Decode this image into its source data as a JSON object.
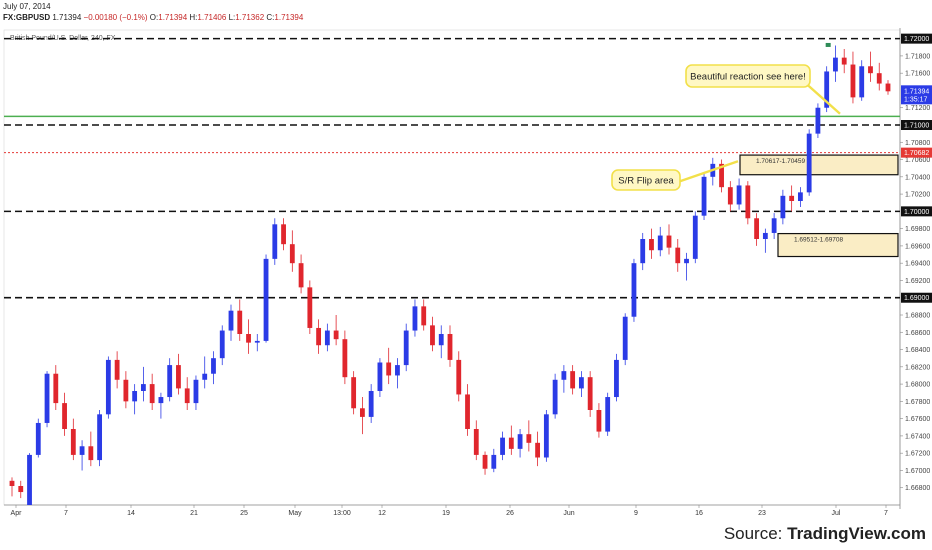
{
  "header": {
    "date": "July 07, 2014",
    "symbol": "FX:GBPUSD",
    "last": "1.71394",
    "change": "−0.00180 (−0.1%)",
    "open_label": "O:",
    "open": "1.71394",
    "high_label": "H:",
    "high": "1.71406",
    "low_label": "L:",
    "low": "1.71362",
    "close_label": "C:",
    "close": "1.71394",
    "instrument_title": "British Pound/U.S. Dollar, 240, FX"
  },
  "source": {
    "prefix": "Source: ",
    "brand": "TradingView.com"
  },
  "chart_data": {
    "type": "candlestick",
    "y_range": [
      1.666,
      1.721
    ],
    "x_tick_labels": [
      "Apr",
      "7",
      "14",
      "21",
      "25",
      "May",
      "13:00",
      "12",
      "19",
      "26",
      "Jun",
      "9",
      "16",
      "23",
      "Jul",
      "7"
    ],
    "y_tick_labels": [
      "1.71800",
      "1.71600",
      "1.71200",
      "1.70800",
      "1.70600",
      "1.70400",
      "1.70200",
      "1.69800",
      "1.69600",
      "1.69400",
      "1.69200",
      "1.68800",
      "1.68600",
      "1.68400",
      "1.68200",
      "1.68000",
      "1.67800",
      "1.67600",
      "1.67400",
      "1.67200",
      "1.67000",
      "1.66800"
    ],
    "level_labels": [
      {
        "value": 1.72,
        "label": "1.72000",
        "style": "dashed-black"
      },
      {
        "value": 1.71,
        "label": "1.71000",
        "style": "dashed-black"
      },
      {
        "value": 1.7,
        "label": "1.70000",
        "style": "dashed-black"
      },
      {
        "value": 1.69,
        "label": "1.69000",
        "style": "dashed-black"
      },
      {
        "value": 1.7068,
        "label": "1.70682",
        "style": "dotted-red"
      },
      {
        "value": 1.711,
        "label": "",
        "style": "solid-green"
      }
    ],
    "current_price": {
      "label": "1.71394",
      "time": "1:35:17"
    },
    "zones": [
      {
        "label": "1.70617-1.70459",
        "top": 1.70617,
        "bottom": 1.70459
      },
      {
        "label": "1.69512-1.69708",
        "top": 1.69708,
        "bottom": 1.69512
      }
    ],
    "annotations": [
      {
        "text": "Beautiful reaction see here!"
      },
      {
        "text": "S/R Flip area"
      }
    ],
    "candles": [
      {
        "o": 1.6688,
        "h": 1.6692,
        "l": 1.667,
        "c": 1.6682
      },
      {
        "o": 1.6682,
        "h": 1.6688,
        "l": 1.6668,
        "c": 1.6675
      },
      {
        "o": 1.666,
        "h": 1.672,
        "l": 1.666,
        "c": 1.6718
      },
      {
        "o": 1.6718,
        "h": 1.676,
        "l": 1.6715,
        "c": 1.6755
      },
      {
        "o": 1.6755,
        "h": 1.6815,
        "l": 1.675,
        "c": 1.6812
      },
      {
        "o": 1.6812,
        "h": 1.6822,
        "l": 1.677,
        "c": 1.6778
      },
      {
        "o": 1.6778,
        "h": 1.679,
        "l": 1.674,
        "c": 1.6748
      },
      {
        "o": 1.6748,
        "h": 1.676,
        "l": 1.6712,
        "c": 1.6718
      },
      {
        "o": 1.6718,
        "h": 1.6735,
        "l": 1.67,
        "c": 1.6728
      },
      {
        "o": 1.6728,
        "h": 1.6745,
        "l": 1.6705,
        "c": 1.6712
      },
      {
        "o": 1.6712,
        "h": 1.677,
        "l": 1.6705,
        "c": 1.6765
      },
      {
        "o": 1.6765,
        "h": 1.6832,
        "l": 1.676,
        "c": 1.6828
      },
      {
        "o": 1.6828,
        "h": 1.6838,
        "l": 1.6795,
        "c": 1.6805
      },
      {
        "o": 1.6805,
        "h": 1.6815,
        "l": 1.6772,
        "c": 1.678
      },
      {
        "o": 1.678,
        "h": 1.68,
        "l": 1.6765,
        "c": 1.6792
      },
      {
        "o": 1.6792,
        "h": 1.682,
        "l": 1.678,
        "c": 1.68
      },
      {
        "o": 1.68,
        "h": 1.6812,
        "l": 1.677,
        "c": 1.6778
      },
      {
        "o": 1.6778,
        "h": 1.679,
        "l": 1.676,
        "c": 1.6785
      },
      {
        "o": 1.6785,
        "h": 1.683,
        "l": 1.678,
        "c": 1.6822
      },
      {
        "o": 1.6822,
        "h": 1.6835,
        "l": 1.6788,
        "c": 1.6795
      },
      {
        "o": 1.6795,
        "h": 1.6808,
        "l": 1.677,
        "c": 1.6778
      },
      {
        "o": 1.6778,
        "h": 1.681,
        "l": 1.677,
        "c": 1.6805
      },
      {
        "o": 1.6805,
        "h": 1.6832,
        "l": 1.6795,
        "c": 1.6812
      },
      {
        "o": 1.6812,
        "h": 1.6838,
        "l": 1.68,
        "c": 1.683
      },
      {
        "o": 1.683,
        "h": 1.6868,
        "l": 1.6822,
        "c": 1.6862
      },
      {
        "o": 1.6862,
        "h": 1.6892,
        "l": 1.685,
        "c": 1.6885
      },
      {
        "o": 1.6885,
        "h": 1.6898,
        "l": 1.685,
        "c": 1.6858
      },
      {
        "o": 1.6858,
        "h": 1.6875,
        "l": 1.6835,
        "c": 1.6848
      },
      {
        "o": 1.6848,
        "h": 1.6858,
        "l": 1.6838,
        "c": 1.685
      },
      {
        "o": 1.685,
        "h": 1.695,
        "l": 1.6848,
        "c": 1.6945
      },
      {
        "o": 1.6945,
        "h": 1.6992,
        "l": 1.6938,
        "c": 1.6985
      },
      {
        "o": 1.6985,
        "h": 1.6992,
        "l": 1.6955,
        "c": 1.6962
      },
      {
        "o": 1.6962,
        "h": 1.6978,
        "l": 1.693,
        "c": 1.694
      },
      {
        "o": 1.694,
        "h": 1.695,
        "l": 1.6905,
        "c": 1.6912
      },
      {
        "o": 1.6912,
        "h": 1.692,
        "l": 1.6858,
        "c": 1.6865
      },
      {
        "o": 1.6865,
        "h": 1.6875,
        "l": 1.6835,
        "c": 1.6845
      },
      {
        "o": 1.6845,
        "h": 1.687,
        "l": 1.6838,
        "c": 1.6862
      },
      {
        "o": 1.6862,
        "h": 1.688,
        "l": 1.6845,
        "c": 1.6852
      },
      {
        "o": 1.6852,
        "h": 1.6862,
        "l": 1.68,
        "c": 1.6808
      },
      {
        "o": 1.6808,
        "h": 1.6815,
        "l": 1.6765,
        "c": 1.6772
      },
      {
        "o": 1.6772,
        "h": 1.6785,
        "l": 1.6742,
        "c": 1.6762
      },
      {
        "o": 1.6762,
        "h": 1.68,
        "l": 1.6755,
        "c": 1.6792
      },
      {
        "o": 1.6792,
        "h": 1.683,
        "l": 1.6785,
        "c": 1.6825
      },
      {
        "o": 1.6825,
        "h": 1.6842,
        "l": 1.68,
        "c": 1.681
      },
      {
        "o": 1.681,
        "h": 1.683,
        "l": 1.6795,
        "c": 1.6822
      },
      {
        "o": 1.6822,
        "h": 1.687,
        "l": 1.6815,
        "c": 1.6862
      },
      {
        "o": 1.6862,
        "h": 1.6898,
        "l": 1.6855,
        "c": 1.689
      },
      {
        "o": 1.689,
        "h": 1.6898,
        "l": 1.6862,
        "c": 1.6868
      },
      {
        "o": 1.6868,
        "h": 1.6878,
        "l": 1.6838,
        "c": 1.6845
      },
      {
        "o": 1.6845,
        "h": 1.6868,
        "l": 1.683,
        "c": 1.6858
      },
      {
        "o": 1.6858,
        "h": 1.6868,
        "l": 1.682,
        "c": 1.6828
      },
      {
        "o": 1.6828,
        "h": 1.6838,
        "l": 1.678,
        "c": 1.6788
      },
      {
        "o": 1.6788,
        "h": 1.68,
        "l": 1.674,
        "c": 1.6748
      },
      {
        "o": 1.6748,
        "h": 1.6758,
        "l": 1.6712,
        "c": 1.6718
      },
      {
        "o": 1.6718,
        "h": 1.6722,
        "l": 1.6695,
        "c": 1.6702
      },
      {
        "o": 1.6702,
        "h": 1.6725,
        "l": 1.6698,
        "c": 1.6718
      },
      {
        "o": 1.6718,
        "h": 1.6745,
        "l": 1.6712,
        "c": 1.6738
      },
      {
        "o": 1.6738,
        "h": 1.6752,
        "l": 1.6718,
        "c": 1.6725
      },
      {
        "o": 1.6725,
        "h": 1.6748,
        "l": 1.6715,
        "c": 1.6742
      },
      {
        "o": 1.6742,
        "h": 1.6758,
        "l": 1.6722,
        "c": 1.6732
      },
      {
        "o": 1.6732,
        "h": 1.6745,
        "l": 1.6705,
        "c": 1.6715
      },
      {
        "o": 1.6715,
        "h": 1.677,
        "l": 1.671,
        "c": 1.6765
      },
      {
        "o": 1.6765,
        "h": 1.6812,
        "l": 1.676,
        "c": 1.6805
      },
      {
        "o": 1.6805,
        "h": 1.6822,
        "l": 1.679,
        "c": 1.6815
      },
      {
        "o": 1.6815,
        "h": 1.6822,
        "l": 1.6788,
        "c": 1.6795
      },
      {
        "o": 1.6795,
        "h": 1.6815,
        "l": 1.6785,
        "c": 1.6808
      },
      {
        "o": 1.6808,
        "h": 1.6815,
        "l": 1.6762,
        "c": 1.677
      },
      {
        "o": 1.677,
        "h": 1.6778,
        "l": 1.6738,
        "c": 1.6745
      },
      {
        "o": 1.6745,
        "h": 1.679,
        "l": 1.674,
        "c": 1.6785
      },
      {
        "o": 1.6785,
        "h": 1.6835,
        "l": 1.678,
        "c": 1.6828
      },
      {
        "o": 1.6828,
        "h": 1.6882,
        "l": 1.6822,
        "c": 1.6878
      },
      {
        "o": 1.6878,
        "h": 1.6945,
        "l": 1.6872,
        "c": 1.694
      },
      {
        "o": 1.694,
        "h": 1.6975,
        "l": 1.6932,
        "c": 1.6968
      },
      {
        "o": 1.6968,
        "h": 1.698,
        "l": 1.6945,
        "c": 1.6955
      },
      {
        "o": 1.6955,
        "h": 1.6982,
        "l": 1.6948,
        "c": 1.6972
      },
      {
        "o": 1.6972,
        "h": 1.6985,
        "l": 1.695,
        "c": 1.6958
      },
      {
        "o": 1.6958,
        "h": 1.6968,
        "l": 1.693,
        "c": 1.694
      },
      {
        "o": 1.694,
        "h": 1.6952,
        "l": 1.692,
        "c": 1.6945
      },
      {
        "o": 1.6945,
        "h": 1.7,
        "l": 1.694,
        "c": 1.6995
      },
      {
        "o": 1.6995,
        "h": 1.7045,
        "l": 1.699,
        "c": 1.704
      },
      {
        "o": 1.704,
        "h": 1.7062,
        "l": 1.703,
        "c": 1.7055
      },
      {
        "o": 1.7055,
        "h": 1.706,
        "l": 1.7022,
        "c": 1.7028
      },
      {
        "o": 1.7028,
        "h": 1.7035,
        "l": 1.7,
        "c": 1.7008
      },
      {
        "o": 1.7008,
        "h": 1.7038,
        "l": 1.7002,
        "c": 1.703
      },
      {
        "o": 1.703,
        "h": 1.7035,
        "l": 1.6985,
        "c": 1.6992
      },
      {
        "o": 1.6992,
        "h": 1.6998,
        "l": 1.696,
        "c": 1.6968
      },
      {
        "o": 1.6968,
        "h": 1.698,
        "l": 1.6952,
        "c": 1.6975
      },
      {
        "o": 1.6975,
        "h": 1.6998,
        "l": 1.6968,
        "c": 1.6992
      },
      {
        "o": 1.6992,
        "h": 1.7025,
        "l": 1.6985,
        "c": 1.7018
      },
      {
        "o": 1.7018,
        "h": 1.703,
        "l": 1.7,
        "c": 1.7012
      },
      {
        "o": 1.7012,
        "h": 1.7028,
        "l": 1.7005,
        "c": 1.7022
      },
      {
        "o": 1.7022,
        "h": 1.7095,
        "l": 1.7018,
        "c": 1.709
      },
      {
        "o": 1.709,
        "h": 1.7125,
        "l": 1.7085,
        "c": 1.712
      },
      {
        "o": 1.712,
        "h": 1.7168,
        "l": 1.7115,
        "c": 1.7162
      },
      {
        "o": 1.7162,
        "h": 1.7192,
        "l": 1.715,
        "c": 1.7178
      },
      {
        "o": 1.7178,
        "h": 1.7188,
        "l": 1.716,
        "c": 1.717
      },
      {
        "o": 1.717,
        "h": 1.7185,
        "l": 1.7125,
        "c": 1.7132
      },
      {
        "o": 1.7132,
        "h": 1.7175,
        "l": 1.7128,
        "c": 1.7168
      },
      {
        "o": 1.7168,
        "h": 1.7185,
        "l": 1.715,
        "c": 1.716
      },
      {
        "o": 1.716,
        "h": 1.7172,
        "l": 1.714,
        "c": 1.7148
      },
      {
        "o": 1.7148,
        "h": 1.7152,
        "l": 1.7135,
        "c": 1.7139
      }
    ]
  }
}
